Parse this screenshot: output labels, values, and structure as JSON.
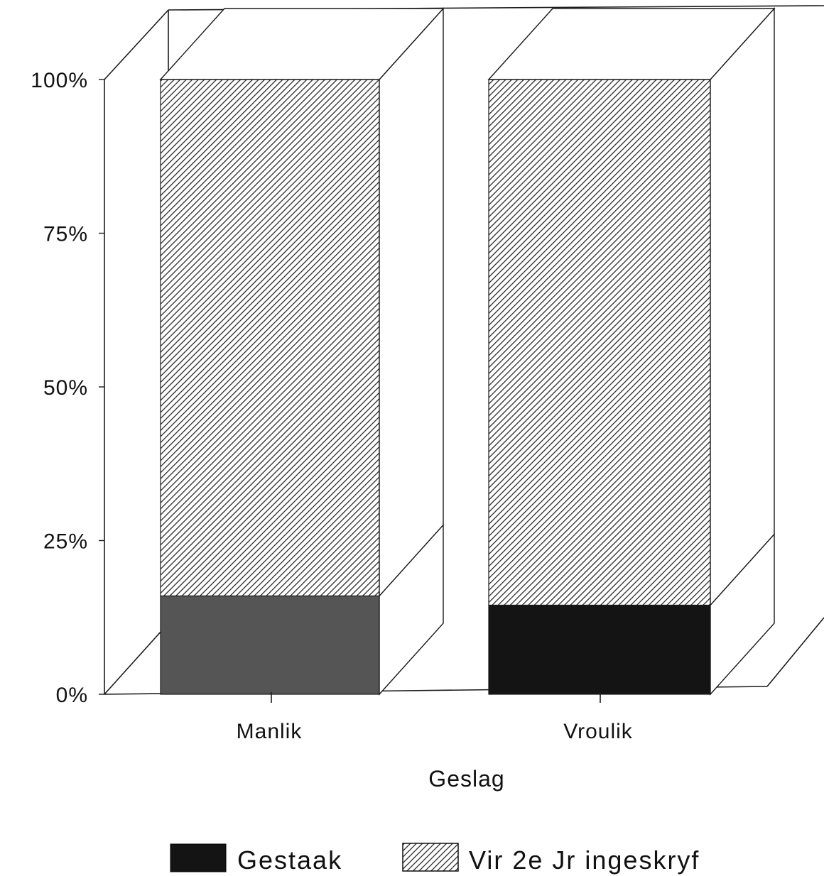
{
  "chart_data": {
    "type": "bar",
    "stacked": true,
    "percent": true,
    "three_d": true,
    "title": "",
    "xlabel": "Geslag",
    "ylabel": "",
    "categories": [
      "Manlik",
      "Vroulik"
    ],
    "ylim": [
      0,
      100
    ],
    "yticks": [
      0,
      25,
      50,
      75,
      100
    ],
    "ytick_labels": [
      "0%",
      "25%",
      "50%",
      "75%",
      "100%"
    ],
    "series": [
      {
        "name": "Gestaak",
        "values": [
          16,
          14.5
        ],
        "fill": "solid"
      },
      {
        "name": "Vir 2e Jr ingeskryf",
        "values": [
          84,
          85.5
        ],
        "fill": "hatched"
      }
    ],
    "legend_position": "bottom",
    "grid": false
  },
  "colors": {
    "gestaak_manlik": "#555555",
    "gestaak_vroulik": "#141414",
    "hatch_stroke": "#2a2a2a",
    "frame": "#1a1a1a"
  }
}
